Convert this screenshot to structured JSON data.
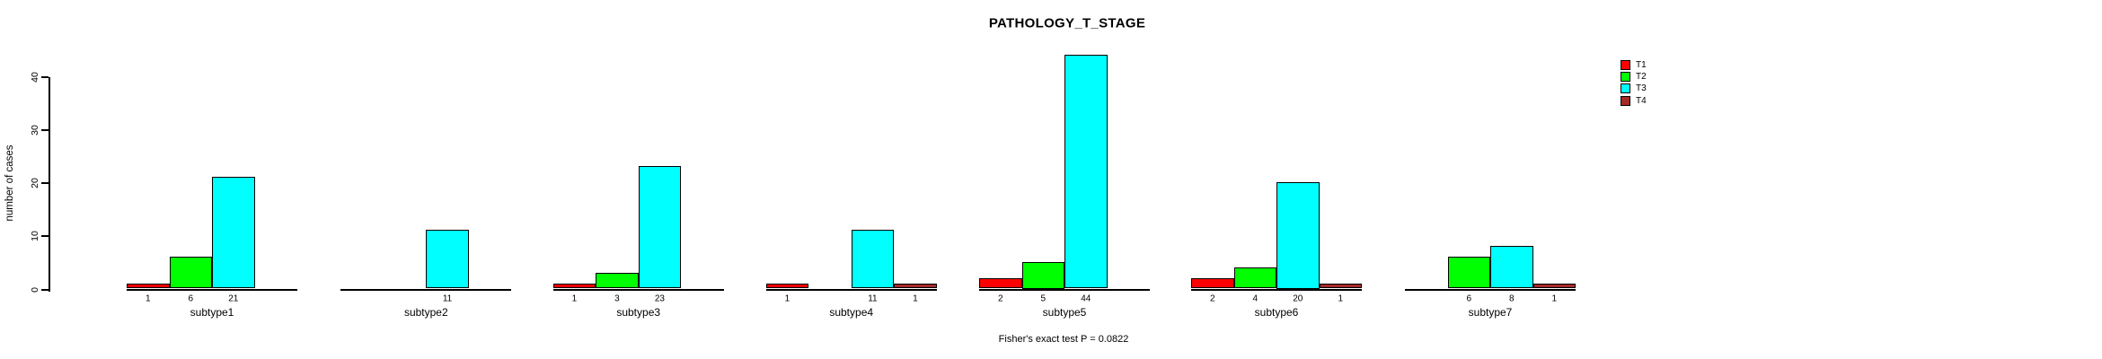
{
  "chart_data": {
    "type": "bar",
    "subtype": "grouped-vertical",
    "title": "PATHOLOGY_T_STAGE",
    "xlabel": "",
    "ylabel": "number of cases",
    "annotation": "Fisher's exact test P = 0.0822",
    "categories": [
      "subtype1",
      "subtype2",
      "subtype3",
      "subtype4",
      "subtype5",
      "subtype6",
      "subtype7"
    ],
    "series": [
      {
        "name": "T1",
        "color": "#FF0000",
        "values": [
          1,
          0,
          1,
          1,
          2,
          2,
          0
        ]
      },
      {
        "name": "T2",
        "color": "#00FF00",
        "values": [
          6,
          0,
          3,
          0,
          5,
          4,
          6
        ]
      },
      {
        "name": "T3",
        "color": "#00FFFF",
        "values": [
          21,
          11,
          23,
          11,
          44,
          20,
          8
        ]
      },
      {
        "name": "T4",
        "color": "#A52A2A",
        "values": [
          0,
          0,
          0,
          1,
          0,
          1,
          1
        ]
      }
    ],
    "value_labels": "counts shown below baseline for each non-zero bar",
    "yticks": [
      0,
      10,
      20,
      30,
      40
    ],
    "ylim": [
      0,
      44
    ],
    "grid": false,
    "legend_position": "right",
    "axis_color": "#000000",
    "background_color": "#FFFFFF"
  }
}
